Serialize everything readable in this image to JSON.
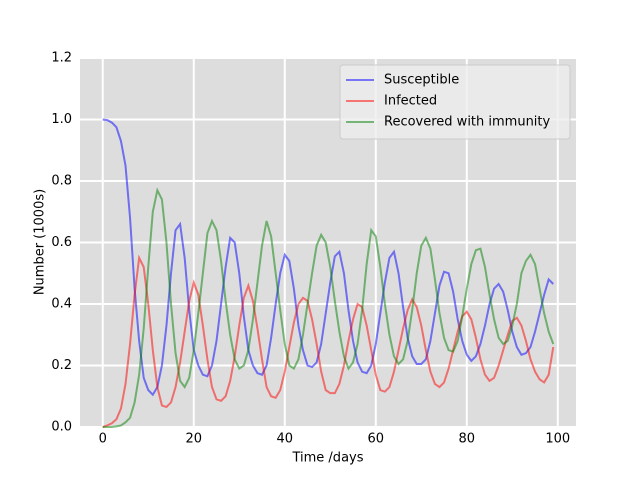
{
  "chart_data": {
    "type": "line",
    "xlabel": "Time /days",
    "ylabel": "Number (1000s)",
    "x": [
      0,
      1,
      2,
      3,
      4,
      5,
      6,
      7,
      8,
      9,
      10,
      11,
      12,
      13,
      14,
      15,
      16,
      17,
      18,
      19,
      20,
      21,
      22,
      23,
      24,
      25,
      26,
      27,
      28,
      29,
      30,
      31,
      32,
      33,
      34,
      35,
      36,
      37,
      38,
      39,
      40,
      41,
      42,
      43,
      44,
      45,
      46,
      47,
      48,
      49,
      50,
      51,
      52,
      53,
      54,
      55,
      56,
      57,
      58,
      59,
      60,
      61,
      62,
      63,
      64,
      65,
      66,
      67,
      68,
      69,
      70,
      71,
      72,
      73,
      74,
      75,
      76,
      77,
      78,
      79,
      80,
      81,
      82,
      83,
      84,
      85,
      86,
      87,
      88,
      89,
      90,
      91,
      92,
      93,
      94,
      95,
      96,
      97,
      98,
      99
    ],
    "series": [
      {
        "name": "Susceptible",
        "color": "#0000ff",
        "values": [
          1.0,
          0.998,
          0.99,
          0.975,
          0.93,
          0.85,
          0.68,
          0.45,
          0.28,
          0.16,
          0.12,
          0.105,
          0.13,
          0.2,
          0.33,
          0.5,
          0.64,
          0.66,
          0.55,
          0.38,
          0.25,
          0.2,
          0.17,
          0.165,
          0.2,
          0.28,
          0.4,
          0.52,
          0.615,
          0.6,
          0.5,
          0.36,
          0.25,
          0.2,
          0.175,
          0.17,
          0.2,
          0.29,
          0.4,
          0.5,
          0.56,
          0.54,
          0.45,
          0.33,
          0.25,
          0.2,
          0.195,
          0.21,
          0.27,
          0.37,
          0.47,
          0.555,
          0.57,
          0.5,
          0.38,
          0.28,
          0.21,
          0.18,
          0.175,
          0.2,
          0.27,
          0.37,
          0.47,
          0.55,
          0.57,
          0.5,
          0.39,
          0.29,
          0.23,
          0.205,
          0.205,
          0.22,
          0.28,
          0.37,
          0.46,
          0.505,
          0.5,
          0.44,
          0.35,
          0.28,
          0.235,
          0.215,
          0.23,
          0.27,
          0.33,
          0.4,
          0.45,
          0.465,
          0.44,
          0.38,
          0.31,
          0.26,
          0.235,
          0.24,
          0.26,
          0.31,
          0.37,
          0.43,
          0.48,
          0.465
        ]
      },
      {
        "name": "Infected",
        "color": "#ff0000",
        "values": [
          0,
          0.005,
          0.012,
          0.025,
          0.06,
          0.14,
          0.27,
          0.43,
          0.55,
          0.52,
          0.4,
          0.25,
          0.13,
          0.07,
          0.065,
          0.08,
          0.13,
          0.21,
          0.31,
          0.41,
          0.47,
          0.43,
          0.33,
          0.22,
          0.13,
          0.09,
          0.085,
          0.1,
          0.15,
          0.23,
          0.33,
          0.42,
          0.46,
          0.41,
          0.32,
          0.22,
          0.13,
          0.1,
          0.095,
          0.12,
          0.18,
          0.26,
          0.34,
          0.4,
          0.42,
          0.41,
          0.35,
          0.27,
          0.18,
          0.12,
          0.11,
          0.11,
          0.14,
          0.2,
          0.28,
          0.35,
          0.4,
          0.39,
          0.33,
          0.25,
          0.17,
          0.12,
          0.115,
          0.13,
          0.18,
          0.25,
          0.32,
          0.38,
          0.415,
          0.39,
          0.33,
          0.25,
          0.18,
          0.14,
          0.13,
          0.145,
          0.19,
          0.25,
          0.31,
          0.36,
          0.375,
          0.35,
          0.29,
          0.22,
          0.17,
          0.15,
          0.16,
          0.2,
          0.25,
          0.3,
          0.345,
          0.355,
          0.33,
          0.28,
          0.22,
          0.18,
          0.155,
          0.145,
          0.17,
          0.26
        ]
      },
      {
        "name": "Recovered with immunity",
        "color": "#008000",
        "values": [
          0,
          0,
          0,
          0.002,
          0.005,
          0.015,
          0.03,
          0.08,
          0.17,
          0.32,
          0.52,
          0.7,
          0.77,
          0.74,
          0.6,
          0.4,
          0.24,
          0.15,
          0.13,
          0.16,
          0.25,
          0.37,
          0.5,
          0.63,
          0.67,
          0.64,
          0.54,
          0.41,
          0.3,
          0.22,
          0.19,
          0.2,
          0.25,
          0.35,
          0.47,
          0.59,
          0.67,
          0.62,
          0.5,
          0.38,
          0.27,
          0.2,
          0.19,
          0.22,
          0.3,
          0.4,
          0.5,
          0.59,
          0.625,
          0.6,
          0.52,
          0.41,
          0.31,
          0.23,
          0.19,
          0.21,
          0.27,
          0.38,
          0.53,
          0.64,
          0.62,
          0.52,
          0.4,
          0.3,
          0.23,
          0.205,
          0.22,
          0.28,
          0.38,
          0.5,
          0.59,
          0.615,
          0.58,
          0.48,
          0.37,
          0.29,
          0.25,
          0.245,
          0.28,
          0.36,
          0.45,
          0.53,
          0.575,
          0.58,
          0.52,
          0.43,
          0.35,
          0.29,
          0.27,
          0.28,
          0.33,
          0.4,
          0.5,
          0.54,
          0.56,
          0.53,
          0.45,
          0.37,
          0.31,
          0.27
        ]
      }
    ],
    "xlim": [
      -5,
      104
    ],
    "xticks": [
      0,
      20,
      40,
      60,
      80,
      100
    ],
    "ylim": [
      0,
      1.2
    ],
    "yticks": [
      {
        "value": 0,
        "label": "0.0"
      },
      0.2,
      0.4,
      0.6,
      0.8,
      {
        "value": 1,
        "label": "1.0"
      },
      1.2
    ],
    "grid": true,
    "legend": "upper right"
  }
}
